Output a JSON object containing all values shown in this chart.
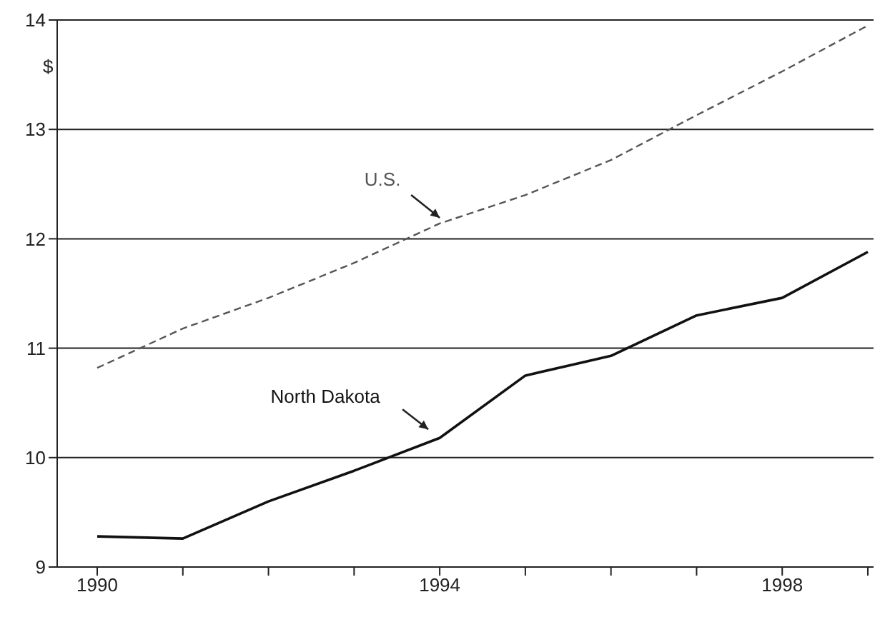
{
  "chart_data": {
    "type": "line",
    "ylabel": "$",
    "categories": [
      "1990",
      null,
      null,
      null,
      "1994",
      null,
      null,
      null,
      "1998",
      null
    ],
    "series": [
      {
        "name": "U.S.",
        "color": "#555555",
        "line_style": "dashed",
        "values": [
          10.82,
          11.18,
          11.46,
          11.78,
          12.14,
          12.4,
          12.72,
          13.13,
          13.53,
          13.95
        ]
      },
      {
        "name": "North Dakota",
        "color": "#111111",
        "line_style": "solid",
        "values": [
          9.28,
          9.26,
          9.6,
          9.88,
          10.18,
          10.75,
          10.93,
          11.3,
          11.46,
          11.88
        ]
      }
    ],
    "ylim": [
      9,
      14
    ],
    "yticks": [
      9,
      10,
      11,
      12,
      13,
      14
    ],
    "grid": "y",
    "legend": false,
    "marker": "none"
  }
}
